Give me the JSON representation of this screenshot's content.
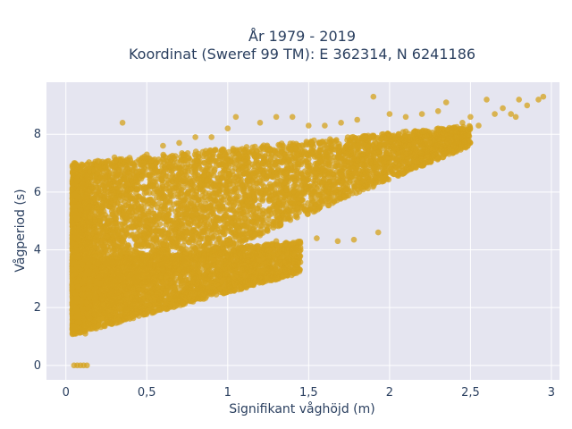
{
  "chart_data": {
    "type": "scatter",
    "title_line1": "År 1979 - 2019",
    "title_line2": "Koordinat (Sweref 99 TM): E 362314, N 6241186",
    "xlabel": "Signifikant våghöjd (m)",
    "ylabel": "Vågperiod (s)",
    "xlim": [
      -0.12,
      3.05
    ],
    "ylim": [
      -0.5,
      9.8
    ],
    "x_ticks": [
      0,
      0.5,
      1,
      1.5,
      2,
      2.5,
      3
    ],
    "x_tick_labels": [
      "0",
      "0,5",
      "1",
      "1,5",
      "2",
      "2,5",
      "3"
    ],
    "y_ticks": [
      0,
      2,
      4,
      6,
      8
    ],
    "y_tick_labels": [
      "0",
      "2",
      "4",
      "6",
      "8"
    ],
    "grid": true,
    "point_color": "#d4a21c",
    "plot_bg": "#e5e5f0",
    "points": [
      [
        0.05,
        0.0
      ],
      [
        0.07,
        0.0
      ],
      [
        0.09,
        0.0
      ],
      [
        0.11,
        0.0
      ],
      [
        0.13,
        0.0
      ],
      [
        0.05,
        1.3
      ],
      [
        0.08,
        1.5
      ],
      [
        0.1,
        1.2
      ],
      [
        0.12,
        1.1
      ],
      [
        0.15,
        1.3
      ],
      [
        0.2,
        1.6
      ],
      [
        0.25,
        1.8
      ],
      [
        0.3,
        2.0
      ],
      [
        0.05,
        5.4
      ],
      [
        0.06,
        6.7
      ],
      [
        0.1,
        6.6
      ],
      [
        0.15,
        6.8
      ],
      [
        0.2,
        6.9
      ],
      [
        0.3,
        7.2
      ],
      [
        0.35,
        8.4
      ],
      [
        0.4,
        7.0
      ],
      [
        0.5,
        7.3
      ],
      [
        0.6,
        7.6
      ],
      [
        0.7,
        7.7
      ],
      [
        0.8,
        7.9
      ],
      [
        0.9,
        7.9
      ],
      [
        1.0,
        8.2
      ],
      [
        1.05,
        8.6
      ],
      [
        1.2,
        8.4
      ],
      [
        1.3,
        8.6
      ],
      [
        1.4,
        8.6
      ],
      [
        1.5,
        8.3
      ],
      [
        1.6,
        8.3
      ],
      [
        1.7,
        8.4
      ],
      [
        1.8,
        8.5
      ],
      [
        1.9,
        9.3
      ],
      [
        2.0,
        8.7
      ],
      [
        2.1,
        8.6
      ],
      [
        2.2,
        8.7
      ],
      [
        2.3,
        8.8
      ],
      [
        2.35,
        9.1
      ],
      [
        2.45,
        8.4
      ],
      [
        2.5,
        8.6
      ],
      [
        2.6,
        9.2
      ],
      [
        2.7,
        8.9
      ],
      [
        2.75,
        8.7
      ],
      [
        2.8,
        9.2
      ],
      [
        2.85,
        9.0
      ],
      [
        2.92,
        9.2
      ],
      [
        2.95,
        9.3
      ],
      [
        2.55,
        8.3
      ],
      [
        2.65,
        8.7
      ],
      [
        2.78,
        8.6
      ],
      [
        2.3,
        8.2
      ],
      [
        2.2,
        8.1
      ],
      [
        2.1,
        8.1
      ],
      [
        1.1,
        4.4
      ],
      [
        1.2,
        4.5
      ],
      [
        1.3,
        4.3
      ],
      [
        1.4,
        4.2
      ],
      [
        1.45,
        4.0
      ],
      [
        1.55,
        4.4
      ],
      [
        1.68,
        4.3
      ],
      [
        1.78,
        4.35
      ],
      [
        1.93,
        4.6
      ],
      [
        0.9,
        3.7
      ],
      [
        1.0,
        3.8
      ],
      [
        1.1,
        4.0
      ],
      [
        1.2,
        4.1
      ],
      [
        1.3,
        3.5
      ],
      [
        1.22,
        3.7
      ],
      [
        0.7,
        4.5
      ],
      [
        0.6,
        4.2
      ],
      [
        0.5,
        4.6
      ],
      [
        0.8,
        4.3
      ],
      [
        0.45,
        6.2
      ],
      [
        0.3,
        6.4
      ],
      [
        1.65,
        6.5
      ],
      [
        1.6,
        6.6
      ],
      [
        1.75,
        6.8
      ],
      [
        1.8,
        7.1
      ],
      [
        1.58,
        6.8
      ],
      [
        1.4,
        6.5
      ]
    ],
    "bands": [
      {
        "name": "upper",
        "x0": 0.04,
        "x1": 2.5,
        "lo0": 1.8,
        "hi0": 7.0,
        "lo1": 7.6,
        "hi1": 8.3,
        "count": 5200
      },
      {
        "name": "lower",
        "x0": 0.04,
        "x1": 1.45,
        "lo0": 1.05,
        "hi0": 3.6,
        "lo1": 3.2,
        "hi1": 4.3,
        "count": 3500
      },
      {
        "name": "spike",
        "x0": 0.04,
        "x1": 0.15,
        "lo0": 1.2,
        "hi0": 6.5,
        "lo1": 1.3,
        "hi1": 6.6,
        "count": 900
      }
    ]
  }
}
